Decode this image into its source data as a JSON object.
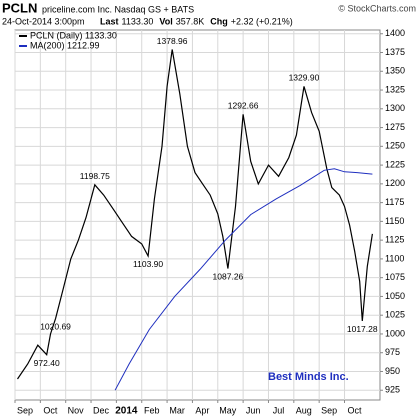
{
  "chart_data": {
    "type": "line",
    "title": "PCLN",
    "subtitle": "priceline.com Inc. Nasdaq GS + BATS",
    "credit": "© StockCharts.com",
    "date": "24-Oct-2014 3:00pm",
    "info": [
      {
        "label": "Last",
        "value": "1133.30"
      },
      {
        "label": "Vol",
        "value": "357.8K"
      },
      {
        "label": "Chg",
        "value": "+2.32 (+0.21%)"
      }
    ],
    "watermark": "Best Minds Inc.",
    "grid": true,
    "legend": "top-left",
    "xlim": [
      0,
      14.4
    ],
    "xticks": [
      {
        "value": 0,
        "label": "Sep"
      },
      {
        "value": 1,
        "label": "Oct"
      },
      {
        "value": 2,
        "label": "Nov"
      },
      {
        "value": 3,
        "label": "Dec"
      },
      {
        "value": 4,
        "label": "2014"
      },
      {
        "value": 5,
        "label": "Feb"
      },
      {
        "value": 6,
        "label": "Mar"
      },
      {
        "value": 7,
        "label": "Apr"
      },
      {
        "value": 8,
        "label": "May"
      },
      {
        "value": 9,
        "label": "Jun"
      },
      {
        "value": 10,
        "label": "Jul"
      },
      {
        "value": 11,
        "label": "Aug"
      },
      {
        "value": 12,
        "label": "Sep"
      },
      {
        "value": 13,
        "label": "Oct"
      }
    ],
    "ylim": [
      912,
      1405
    ],
    "yticks": [
      925,
      950,
      975,
      1000,
      1025,
      1050,
      1075,
      1100,
      1125,
      1150,
      1175,
      1200,
      1225,
      1250,
      1275,
      1300,
      1325,
      1350,
      1375,
      1400
    ],
    "series": [
      {
        "name": "PCLN (Daily) 1133.30",
        "color": "#000000",
        "x": [
          0.1,
          0.5,
          0.9,
          1.25,
          1.4,
          1.6,
          1.9,
          2.2,
          2.5,
          2.8,
          3.15,
          3.5,
          3.9,
          4.2,
          4.6,
          5.0,
          5.25,
          5.5,
          5.8,
          6.0,
          6.2,
          6.5,
          6.8,
          7.1,
          7.4,
          7.7,
          8.0,
          8.2,
          8.4,
          8.7,
          9.0,
          9.3,
          9.6,
          10.0,
          10.4,
          10.8,
          11.1,
          11.4,
          11.7,
          12.0,
          12.3,
          12.5,
          12.8,
          13.0,
          13.2,
          13.4,
          13.6,
          13.7,
          13.9,
          14.1
        ],
        "values": [
          940,
          960,
          985,
          972.4,
          1000,
          1020.69,
          1060,
          1100,
          1125,
          1155,
          1198.75,
          1185,
          1165,
          1150,
          1130,
          1120,
          1103.9,
          1180,
          1250,
          1330,
          1378.96,
          1320,
          1250,
          1215,
          1200,
          1185,
          1160,
          1130,
          1087.26,
          1170,
          1292.66,
          1230,
          1200,
          1225,
          1210,
          1235,
          1265,
          1329.9,
          1295,
          1270,
          1220,
          1195,
          1185,
          1170,
          1145,
          1110,
          1070,
          1017.28,
          1090,
          1133.3
        ]
      },
      {
        "name": "MA(200) 1212.99",
        "color": "#1f2fbf",
        "x": [
          3.95,
          4.5,
          5.3,
          6.3,
          7.3,
          8.3,
          9.3,
          10.3,
          11.25,
          12.2,
          12.6,
          13.0,
          13.5,
          14.1
        ],
        "values": [
          925,
          960,
          1006,
          1050,
          1086,
          1125,
          1159,
          1180,
          1198,
          1218,
          1220,
          1216,
          1215,
          1212.99
        ]
      }
    ],
    "annotations": [
      {
        "x": 1.25,
        "value": 972.4,
        "label": "972.40"
      },
      {
        "x": 1.6,
        "value": 1020.69,
        "label": "1020.69"
      },
      {
        "x": 3.15,
        "value": 1198.75,
        "label": "1198.75"
      },
      {
        "x": 5.25,
        "value": 1103.9,
        "label": "1103.90"
      },
      {
        "x": 6.2,
        "value": 1378.96,
        "label": "1378.96"
      },
      {
        "x": 8.4,
        "value": 1087.26,
        "label": "1087.26"
      },
      {
        "x": 9.0,
        "value": 1292.66,
        "label": "1292.66"
      },
      {
        "x": 11.4,
        "value": 1329.9,
        "label": "1329.90"
      },
      {
        "x": 13.7,
        "value": 1017.28,
        "label": "1017.28"
      }
    ]
  }
}
